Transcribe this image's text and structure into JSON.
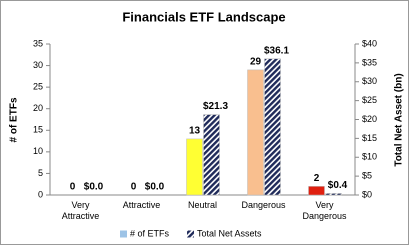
{
  "chart_data": {
    "type": "bar",
    "title": "Financials ETF Landscape",
    "y_label": "# of ETFs",
    "y2_label": "Total Net Asset (bn)",
    "categories": [
      "Very Attractive",
      "Attractive",
      "Neutral",
      "Dangerous",
      "Very Dangerous"
    ],
    "series": [
      {
        "name": "# of ETFs",
        "color": "#9dc3e6",
        "colors": [
          "#00a651",
          "#92d050",
          "#ffff33",
          "#f9bf8f",
          "#e02010"
        ],
        "values": [
          0,
          0,
          13,
          29,
          2
        ]
      },
      {
        "name": "Total Net Assets",
        "color": "#1f2a5a",
        "axis": "y2",
        "values": [
          0,
          0,
          21.3,
          36.1,
          0.4
        ],
        "value_labels": [
          "$0.0",
          "$0.0",
          "$21.3",
          "$36.1",
          "$0.4"
        ]
      }
    ],
    "ylim": [
      0,
      35
    ],
    "yticks": [
      0,
      5,
      10,
      15,
      20,
      25,
      30,
      35
    ],
    "y2lim": [
      0,
      40
    ],
    "y2ticks": [
      {
        "value": 0,
        "label": "$0"
      },
      {
        "value": 5,
        "label": "$5"
      },
      {
        "value": 10,
        "label": "$10"
      },
      {
        "value": 15,
        "label": "$15"
      },
      {
        "value": 20,
        "label": "$20"
      },
      {
        "value": 25,
        "label": "$25"
      },
      {
        "value": 30,
        "label": "$30"
      },
      {
        "value": 35,
        "label": "$35"
      },
      {
        "value": 40,
        "label": "$40"
      }
    ],
    "grid": false,
    "legend": "bottom"
  }
}
